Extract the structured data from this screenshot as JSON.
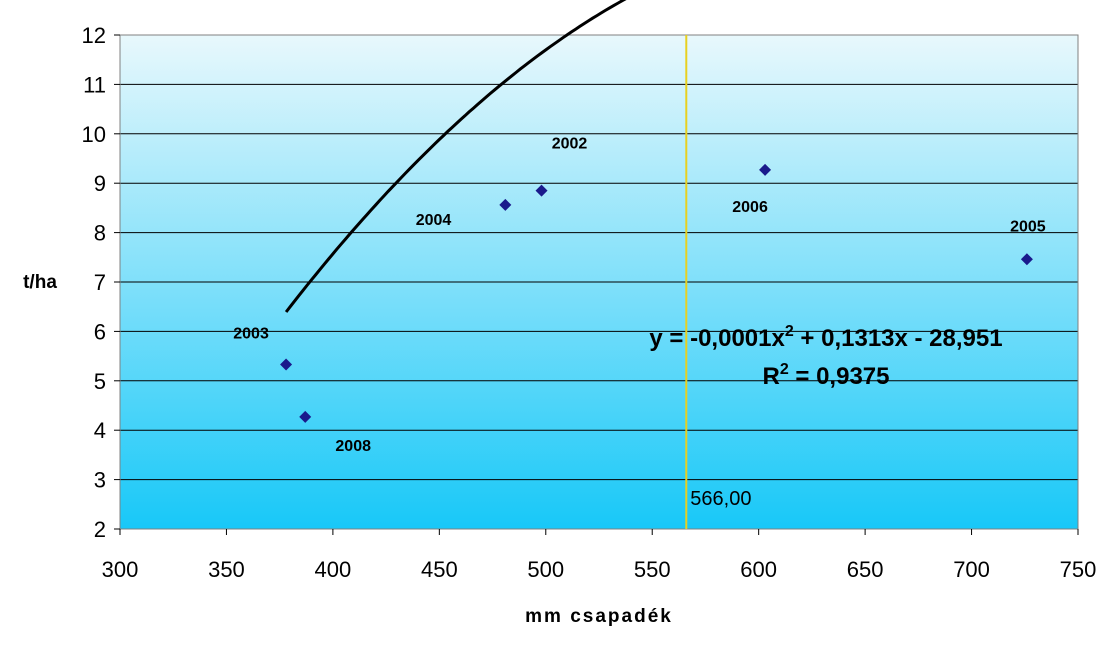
{
  "chart_data": {
    "type": "scatter",
    "title": "",
    "xlabel": "mm csapadék",
    "ylabel": "t/ha",
    "xlim": [
      300,
      750
    ],
    "ylim": [
      2,
      12
    ],
    "x_ticks": [
      300,
      350,
      400,
      450,
      500,
      550,
      600,
      650,
      700,
      750
    ],
    "y_ticks": [
      2,
      3,
      4,
      5,
      6,
      7,
      8,
      9,
      10,
      11,
      12
    ],
    "grid": "horizontal",
    "legend": "none",
    "points": [
      {
        "label": "2002",
        "x": 498,
        "y": 8.85
      },
      {
        "label": "2003",
        "x": 378,
        "y": 5.33
      },
      {
        "label": "2004",
        "x": 481,
        "y": 8.56
      },
      {
        "label": "2005",
        "x": 726,
        "y": 7.46
      },
      {
        "label": "2006",
        "x": 603,
        "y": 9.27
      },
      {
        "label": "2008",
        "x": 387,
        "y": 4.27
      }
    ],
    "trendline": {
      "type": "polynomial-2",
      "a": -0.0001,
      "b": 0.1313,
      "c": -28.951,
      "x_range": [
        378,
        726
      ],
      "equation_text": "y = -0,0001x",
      "equation_exp": "2",
      "equation_rest": " + 0,1313x - 28,951",
      "r2_prefix": "R",
      "r2_exp": "2",
      "r2_rest": " = 0,9375"
    },
    "reference_line": {
      "x": 566,
      "label": "566,00",
      "color": "#e8d020"
    },
    "colors": {
      "marker": "#1a1a8c",
      "trendline": "#000000",
      "plot_top": "#e8f8fc",
      "plot_bottom": "#18c8f8"
    }
  }
}
